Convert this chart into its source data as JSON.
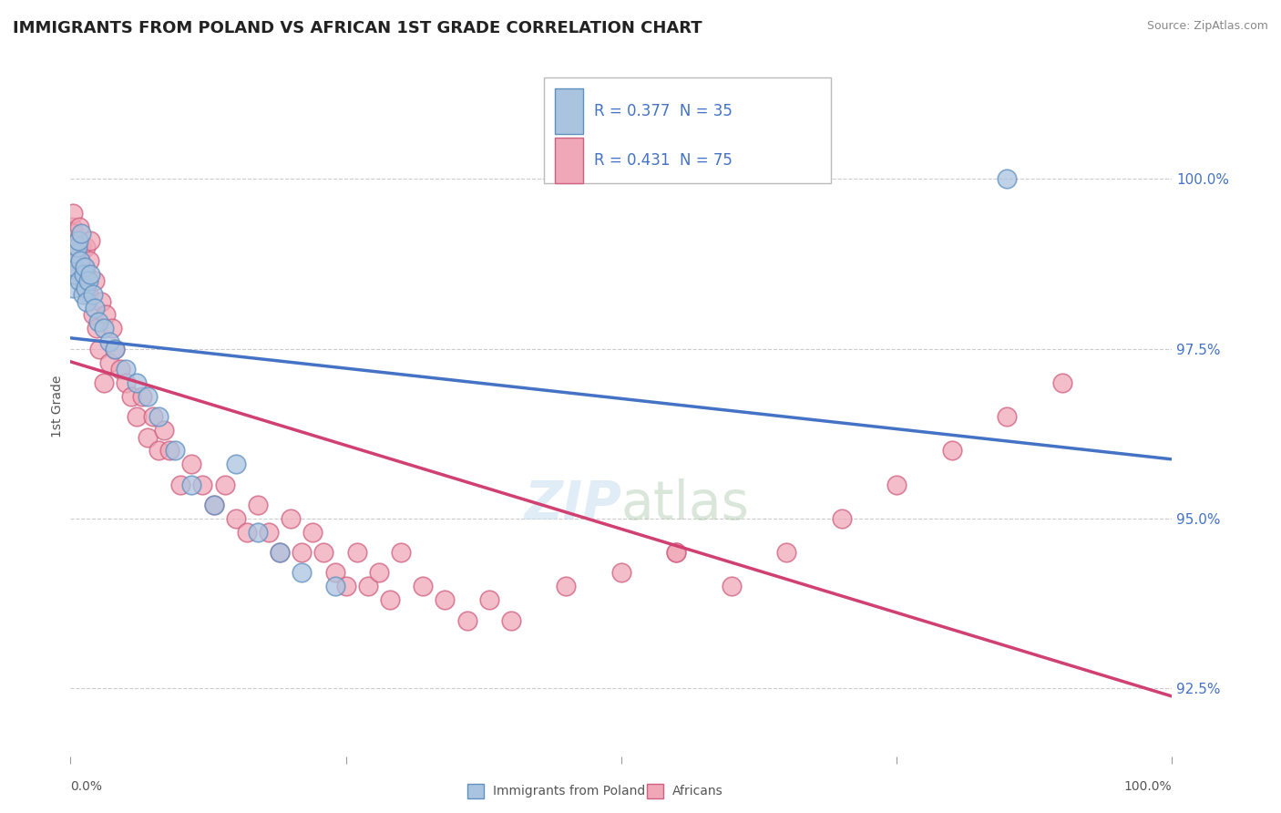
{
  "title": "IMMIGRANTS FROM POLAND VS AFRICAN 1ST GRADE CORRELATION CHART",
  "source": "Source: ZipAtlas.com",
  "ylabel": "1st Grade",
  "legend_label_1": "Immigrants from Poland",
  "legend_label_2": "Africans",
  "legend_r1": "R = 0.377",
  "legend_n1": "N = 35",
  "legend_r2": "R = 0.431",
  "legend_n2": "N = 75",
  "color_poland": "#aac4e0",
  "color_africa": "#f0a8b8",
  "color_poland_edge": "#6090c0",
  "color_africa_edge": "#d06080",
  "color_trend_poland": "#4472c4",
  "color_trend_africa": "#d04070",
  "xlim": [
    0.0,
    100.0
  ],
  "ylim": [
    91.5,
    101.8
  ],
  "yticks": [
    92.5,
    95.0,
    97.5,
    100.0
  ],
  "ytick_labels": [
    "92.5%",
    "95.0%",
    "97.5%",
    "100.0%"
  ],
  "poland_x": [
    0.2,
    0.3,
    0.4,
    0.5,
    0.6,
    0.7,
    0.8,
    0.9,
    1.0,
    1.1,
    1.2,
    1.3,
    1.4,
    1.5,
    1.6,
    1.8,
    2.0,
    2.2,
    2.5,
    3.0,
    3.5,
    4.0,
    5.0,
    6.0,
    7.0,
    8.0,
    9.5,
    11.0,
    13.0,
    15.0,
    17.0,
    19.0,
    21.0,
    24.0,
    85.0
  ],
  "poland_y": [
    98.4,
    98.6,
    98.7,
    98.9,
    99.0,
    99.1,
    98.5,
    98.8,
    99.2,
    98.3,
    98.6,
    98.7,
    98.4,
    98.2,
    98.5,
    98.6,
    98.3,
    98.1,
    97.9,
    97.8,
    97.6,
    97.5,
    97.2,
    97.0,
    96.8,
    96.5,
    96.0,
    95.5,
    95.2,
    95.8,
    94.8,
    94.5,
    94.2,
    94.0,
    100.0
  ],
  "africa_x": [
    0.1,
    0.2,
    0.3,
    0.4,
    0.5,
    0.6,
    0.7,
    0.8,
    0.9,
    1.0,
    1.1,
    1.2,
    1.3,
    1.4,
    1.5,
    1.6,
    1.7,
    1.8,
    2.0,
    2.2,
    2.4,
    2.6,
    2.8,
    3.0,
    3.2,
    3.5,
    3.8,
    4.0,
    4.5,
    5.0,
    5.5,
    6.0,
    6.5,
    7.0,
    7.5,
    8.0,
    8.5,
    9.0,
    10.0,
    11.0,
    12.0,
    13.0,
    14.0,
    15.0,
    16.0,
    17.0,
    18.0,
    19.0,
    20.0,
    21.0,
    22.0,
    23.0,
    24.0,
    25.0,
    26.0,
    27.0,
    28.0,
    29.0,
    30.0,
    32.0,
    34.0,
    36.0,
    38.0,
    40.0,
    45.0,
    50.0,
    55.0,
    60.0,
    65.0,
    70.0,
    75.0,
    80.0,
    85.0,
    90.0,
    55.0
  ],
  "africa_y": [
    99.3,
    99.5,
    99.2,
    99.0,
    98.8,
    99.1,
    98.6,
    99.3,
    98.9,
    99.0,
    98.5,
    98.7,
    98.4,
    99.0,
    98.6,
    98.3,
    98.8,
    99.1,
    98.0,
    98.5,
    97.8,
    97.5,
    98.2,
    97.0,
    98.0,
    97.3,
    97.8,
    97.5,
    97.2,
    97.0,
    96.8,
    96.5,
    96.8,
    96.2,
    96.5,
    96.0,
    96.3,
    96.0,
    95.5,
    95.8,
    95.5,
    95.2,
    95.5,
    95.0,
    94.8,
    95.2,
    94.8,
    94.5,
    95.0,
    94.5,
    94.8,
    94.5,
    94.2,
    94.0,
    94.5,
    94.0,
    94.2,
    93.8,
    94.5,
    94.0,
    93.8,
    93.5,
    93.8,
    93.5,
    94.0,
    94.2,
    94.5,
    94.0,
    94.5,
    95.0,
    95.5,
    96.0,
    96.5,
    97.0,
    94.5
  ]
}
